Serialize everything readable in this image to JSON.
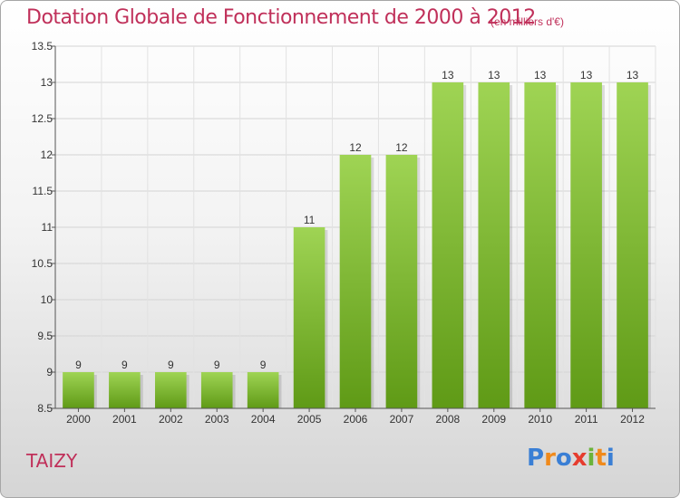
{
  "title": "Dotation Globale de Fonctionnement de 2000 à 2012",
  "unit_note": "(en milliers d'€)",
  "commune": "TAIZY",
  "logo": {
    "text": "Proxiti",
    "letters": [
      "P",
      "r",
      "o",
      "x",
      "i",
      "t",
      "i"
    ],
    "colors": [
      "#3a7fd5",
      "#f08a1c",
      "#3a7fd5",
      "#e63c2e",
      "#6bb33a",
      "#f08a1c",
      "#3a7fd5"
    ]
  },
  "colors": {
    "title": "#c0305a",
    "bar_top": "#9fd454",
    "bar_bottom": "#5f9a16"
  },
  "chart_data": {
    "type": "bar",
    "categories": [
      "2000",
      "2001",
      "2002",
      "2003",
      "2004",
      "2005",
      "2006",
      "2007",
      "2008",
      "2009",
      "2010",
      "2011",
      "2012"
    ],
    "values": [
      9,
      9,
      9,
      9,
      9,
      11,
      12,
      12,
      13,
      13,
      13,
      13,
      13
    ],
    "bar_labels": [
      "9",
      "9",
      "9",
      "9",
      "9",
      "11",
      "12",
      "12",
      "13",
      "13",
      "13",
      "13",
      "13"
    ],
    "ylim": [
      8.5,
      13.5
    ],
    "yticks": [
      8.5,
      9,
      9.5,
      10,
      10.5,
      11,
      11.5,
      12,
      12.5,
      13,
      13.5
    ],
    "ytick_labels": [
      "8.5",
      "9",
      "9.5",
      "10",
      "10.5",
      "11",
      "11.5",
      "12",
      "12.5",
      "13",
      "13.5"
    ],
    "grid": true,
    "xlabel": "",
    "ylabel": ""
  }
}
